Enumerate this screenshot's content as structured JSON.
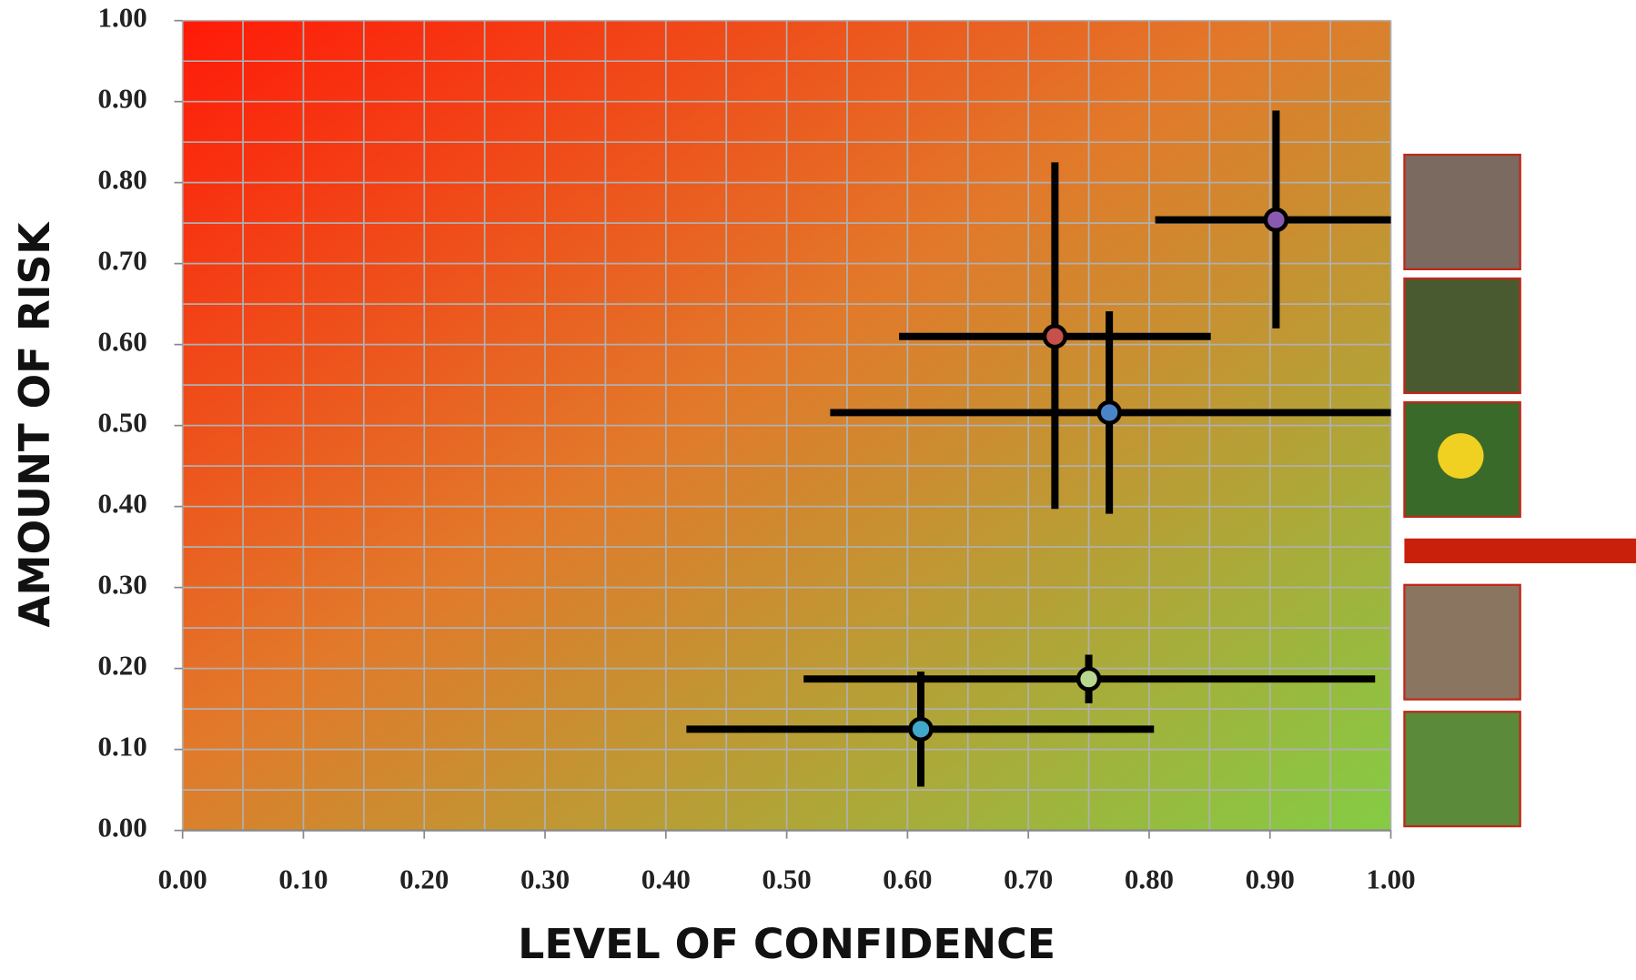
{
  "chart_data": {
    "type": "scatter",
    "x_label": "LEVEL OF CONFIDENCE",
    "y_label": "AMOUNT OF RISK",
    "xlim": [
      0,
      1
    ],
    "ylim": [
      0,
      1
    ],
    "xticks": [
      {
        "value": 0,
        "label": "0.00"
      },
      {
        "value": 0.1,
        "label": "0.10"
      },
      {
        "value": 0.2,
        "label": "0.20"
      },
      {
        "value": 0.3,
        "label": "0.30"
      },
      {
        "value": 0.4,
        "label": "0.40"
      },
      {
        "value": 0.5,
        "label": "0.50"
      },
      {
        "value": 0.6,
        "label": "0.60"
      },
      {
        "value": 0.7,
        "label": "0.70"
      },
      {
        "value": 0.8,
        "label": "0.80"
      },
      {
        "value": 0.9,
        "label": "0.90"
      },
      {
        "value": 1,
        "label": "1.00"
      }
    ],
    "yticks": [
      {
        "value": 0,
        "label": "0.00"
      },
      {
        "value": 0.1,
        "label": "0.10"
      },
      {
        "value": 0.2,
        "label": "0.20"
      },
      {
        "value": 0.3,
        "label": "0.30"
      },
      {
        "value": 0.4,
        "label": "0.40"
      },
      {
        "value": 0.5,
        "label": "0.50"
      },
      {
        "value": 0.6,
        "label": "0.60"
      },
      {
        "value": 0.7,
        "label": "0.70"
      },
      {
        "value": 0.8,
        "label": "0.80"
      },
      {
        "value": 0.9,
        "label": "0.90"
      },
      {
        "value": 1,
        "label": "1.00"
      }
    ],
    "grid": true,
    "minor_grid": true,
    "points": [
      {
        "color": "#8a5ab0",
        "x": 0.905,
        "y": 0.754,
        "xmin": 0.805,
        "xmax": 1.0,
        "ymin": 0.62,
        "ymax": 0.889
      },
      {
        "color": "#c8504a",
        "x": 0.722,
        "y": 0.61,
        "xmin": 0.593,
        "xmax": 0.851,
        "ymin": 0.397,
        "ymax": 0.825
      },
      {
        "color": "#4a84c8",
        "x": 0.767,
        "y": 0.516,
        "xmin": 0.536,
        "xmax": 1.0,
        "ymin": 0.391,
        "ymax": 0.641
      },
      {
        "color": "#b8d890",
        "x": 0.75,
        "y": 0.187,
        "xmin": 0.514,
        "xmax": 0.987,
        "ymin": 0.157,
        "ymax": 0.217
      },
      {
        "color": "#40a8c8",
        "x": 0.611,
        "y": 0.125,
        "xmin": 0.417,
        "xmax": 0.804,
        "ymin": 0.054,
        "ymax": 0.196
      }
    ]
  }
}
